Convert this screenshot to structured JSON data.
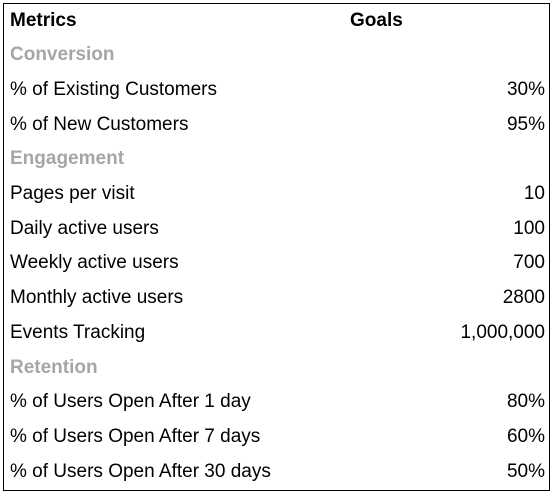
{
  "header": {
    "metrics_label": "Metrics",
    "goals_label": "Goals"
  },
  "colors": {
    "section_text": "#a6a6a6",
    "text": "#000000",
    "border": "#000000"
  },
  "rows": [
    {
      "type": "section",
      "metric": "Conversion",
      "goal": ""
    },
    {
      "type": "item",
      "metric": "% of Existing Customers",
      "goal": "30%"
    },
    {
      "type": "item",
      "metric": "% of New Customers",
      "goal": "95%"
    },
    {
      "type": "section",
      "metric": "Engagement",
      "goal": ""
    },
    {
      "type": "item",
      "metric": "Pages per visit",
      "goal": "10"
    },
    {
      "type": "item",
      "metric": "Daily active users",
      "goal": "100"
    },
    {
      "type": "item",
      "metric": "Weekly active users",
      "goal": "700"
    },
    {
      "type": "item",
      "metric": "Monthly active users",
      "goal": "2800"
    },
    {
      "type": "item",
      "metric": "Events Tracking",
      "goal": "1,000,000"
    },
    {
      "type": "section",
      "metric": "Retention",
      "goal": ""
    },
    {
      "type": "item",
      "metric": "% of Users Open After 1 day",
      "goal": "80%"
    },
    {
      "type": "item",
      "metric": "% of Users Open After 7 days",
      "goal": "60%"
    },
    {
      "type": "item",
      "metric": "% of Users Open After 30 days",
      "goal": "50%"
    }
  ]
}
